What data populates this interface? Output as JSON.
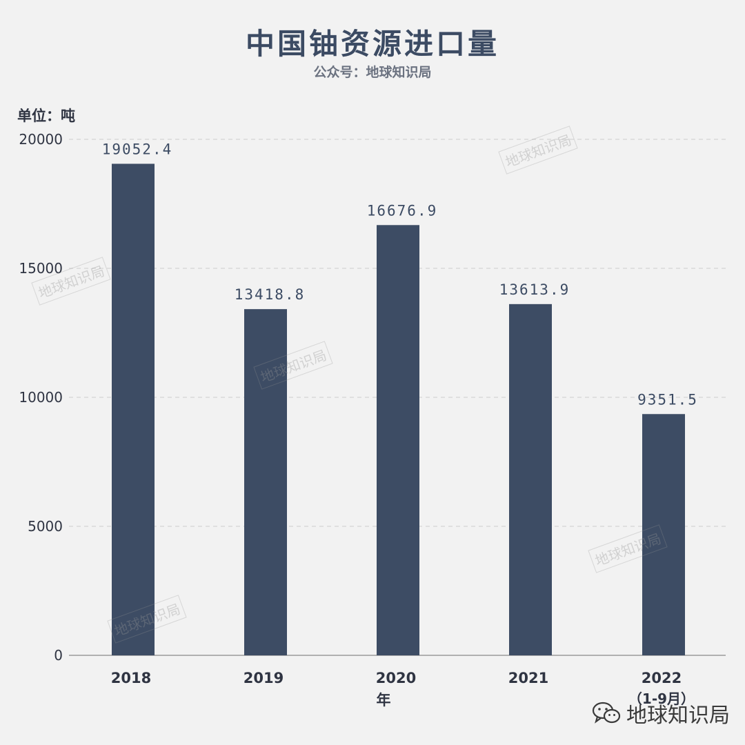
{
  "title": "中国铀资源进口量",
  "subtitle": "公众号：地球知识局",
  "unit_label": "单位：吨",
  "footer": "地球知识局",
  "watermark_text": "地球知识局",
  "colors": {
    "bar": "#3d4c64",
    "background": "#f2f2f2",
    "grid": "#cccccc",
    "text": "#3c4b63"
  },
  "icons": {
    "footer_icon": "wechat-icon"
  },
  "chart_data": {
    "type": "bar",
    "categories": [
      "2018",
      "2019",
      "2020",
      "2021",
      "2022"
    ],
    "category_sublabels": [
      "",
      "",
      "",
      "",
      "（1-9月）"
    ],
    "values": [
      19052.4,
      13418.8,
      16676.9,
      13613.9,
      9351.5
    ],
    "value_labels": [
      "19052.4",
      "13418.8",
      "16676.9",
      "13613.9",
      "9351.5"
    ],
    "title": "中国铀资源进口量",
    "xlabel": "年",
    "ylabel": "单位：吨",
    "ylim": [
      0,
      20000
    ],
    "yticks": [
      0,
      5000,
      10000,
      15000,
      20000
    ],
    "grid": true,
    "legend": "none"
  }
}
